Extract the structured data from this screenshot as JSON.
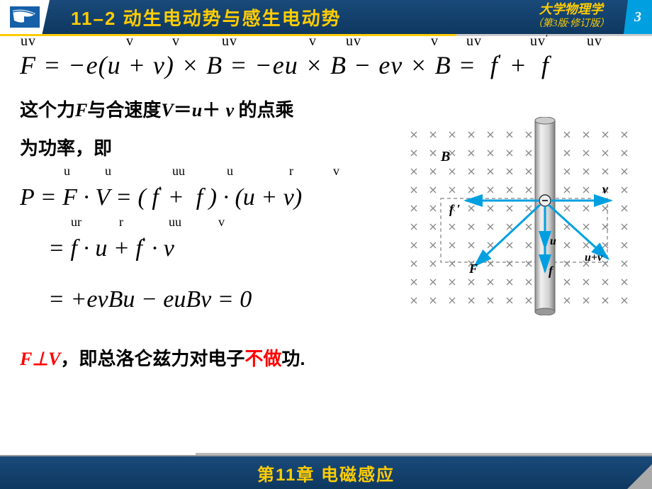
{
  "header": {
    "chapter_title": "11–2 动生电动势与感生电动势",
    "book_title": "大学物理学",
    "book_edition": "（第3版·修订版）",
    "page_number": "3"
  },
  "equation1": {
    "text": "F = −e(u + v) × B = −eu × B − ev × B = f ′ + f",
    "vec_labels": [
      "uv",
      "v",
      "v",
      "uv",
      "v",
      "uv",
      "v",
      "uv",
      "uv′",
      "uv"
    ]
  },
  "text1": "这个力F与合速度V＝u＋v 的点乘",
  "text2": "为功率，即",
  "eq_block": {
    "line1": "P = F · V = ( f ′ + f ) · (u + v)",
    "line2": "= f · u + f ′ · v",
    "line3": "= +evBu − euBv = 0",
    "vec1": [
      "u",
      "u",
      "uu",
      "u",
      "r",
      "v"
    ],
    "vec2": [
      "ur",
      "r",
      "uu",
      "v"
    ]
  },
  "conclusion": {
    "prefix_formula": "F⊥V",
    "mid": "，即总洛仑兹力对电子",
    "highlight": "不做",
    "suffix": "功."
  },
  "diagram": {
    "labels": {
      "B": "B",
      "v": "v",
      "fprime": "f ′",
      "f": "f",
      "u": "u",
      "F": "F",
      "uv": "u+v"
    },
    "colors": {
      "arrow": "#00a0e0",
      "cross": "#888888",
      "rod_light": "#e8e8e8",
      "rod_dark": "#b0b0b0",
      "text": "#000000",
      "dashbox": "#999999"
    }
  },
  "footer": {
    "text": "第11章  电磁感应"
  }
}
